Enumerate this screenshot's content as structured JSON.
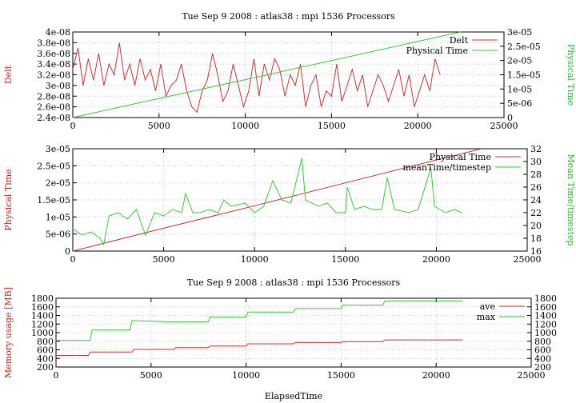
{
  "chart_data": [
    {
      "type": "line",
      "title": "Tue Sep 9 2008 : atlas38 : mpi 1536 Processors",
      "x_ticks": [
        "0",
        "5000",
        "10000",
        "15000",
        "20000",
        "25000"
      ],
      "xlim": [
        0,
        25000
      ],
      "y_left": {
        "label": "Delt",
        "color": "#cc3333",
        "lim": [
          2.4e-08,
          4e-08
        ],
        "ticks": [
          "2.4e-08",
          "2.6e-08",
          "2.8e-08",
          "3e-08",
          "3.2e-08",
          "3.4e-08",
          "3.6e-08",
          "3.8e-08",
          "4e-08"
        ]
      },
      "y_right": {
        "label": "Physical Time",
        "color": "#33cc33",
        "lim": [
          0,
          3e-05
        ],
        "ticks": [
          "0",
          "5e-06",
          "1e-05",
          "1.5e-05",
          "2e-05",
          "2.5e-05",
          "3e-05"
        ]
      },
      "legend_position": "top-right",
      "series": [
        {
          "name": "Delt",
          "color": "#cc3333",
          "axis": "left",
          "x": [
            0,
            300,
            600,
            900,
            1200,
            1500,
            1800,
            2100,
            2400,
            2700,
            3000,
            3300,
            3600,
            3900,
            4200,
            4500,
            4800,
            5100,
            5400,
            5700,
            6000,
            6300,
            6600,
            6900,
            7200,
            7500,
            7800,
            8100,
            8400,
            8700,
            9000,
            9300,
            9600,
            9900,
            10200,
            10500,
            10800,
            11100,
            11400,
            11700,
            12000,
            12300,
            12600,
            12900,
            13200,
            13500,
            13800,
            14100,
            14400,
            14700,
            15000,
            15300,
            15600,
            15900,
            16200,
            16500,
            16800,
            17100,
            17400,
            17700,
            18000,
            18300,
            18600,
            18900,
            19200,
            19500,
            19800,
            20100,
            20400,
            20700,
            21000,
            21300
          ],
          "y": [
            3.3e-08,
            3.7e-08,
            3e-08,
            3.5e-08,
            3.1e-08,
            3.6e-08,
            3e-08,
            3.4e-08,
            3.2e-08,
            3.8e-08,
            3.1e-08,
            3.4e-08,
            3e-08,
            3.5e-08,
            3.1e-08,
            3.3e-08,
            2.9e-08,
            3.4e-08,
            2.8e-08,
            3e-08,
            3.1e-08,
            3.4e-08,
            2.9e-08,
            2.6e-08,
            2.5e-08,
            2.9e-08,
            3.1e-08,
            3.6e-08,
            3.2e-08,
            2.7e-08,
            2.9e-08,
            3.4e-08,
            3e-08,
            2.6e-08,
            2.9e-08,
            3.5e-08,
            2.8e-08,
            3.4e-08,
            3.1e-08,
            3.5e-08,
            3.3e-08,
            2.8e-08,
            3.2e-08,
            3e-08,
            3.4e-08,
            2.6e-08,
            3e-08,
            3.2e-08,
            2.6e-08,
            2.9e-08,
            2.8e-08,
            3.4e-08,
            2.7e-08,
            3e-08,
            3.3e-08,
            2.9e-08,
            3.2e-08,
            2.6e-08,
            2.9e-08,
            3.2e-08,
            3e-08,
            2.7e-08,
            3e-08,
            3.3e-08,
            2.8e-08,
            3.2e-08,
            2.6e-08,
            2.9e-08,
            3.2e-08,
            2.9e-08,
            3.5e-08,
            3.2e-08
          ]
        },
        {
          "name": "Physical Time",
          "color": "#33cc33",
          "axis": "right",
          "x": [
            0,
            5000,
            10000,
            15000,
            20000,
            22500
          ],
          "y": [
            0,
            6.7e-06,
            1.33e-05,
            2e-05,
            2.67e-05,
            3e-05
          ]
        }
      ]
    },
    {
      "type": "line",
      "title": "",
      "x_ticks": [
        "0",
        "5000",
        "10000",
        "15000",
        "20000",
        "25000"
      ],
      "xlim": [
        0,
        25000
      ],
      "y_left": {
        "label": "Physical Time",
        "color": "#cc3333",
        "lim": [
          0,
          3e-05
        ],
        "ticks": [
          "0",
          "5e-06",
          "1e-05",
          "1.5e-05",
          "2e-05",
          "2.5e-05",
          "3e-05"
        ]
      },
      "y_right": {
        "label": "Mean Time/timestep",
        "color": "#33cc33",
        "lim": [
          16,
          32
        ],
        "ticks": [
          "16",
          "18",
          "20",
          "22",
          "24",
          "26",
          "28",
          "30",
          "32"
        ]
      },
      "legend_position": "top-right",
      "series": [
        {
          "name": "Physical Time",
          "color": "#cc3333",
          "axis": "left",
          "x": [
            0,
            5000,
            10000,
            15000,
            20000,
            22500
          ],
          "y": [
            0,
            6.7e-06,
            1.33e-05,
            2e-05,
            2.67e-05,
            3e-05
          ]
        },
        {
          "name": "meanTime/timestep",
          "color": "#33cc33",
          "axis": "right",
          "x": [
            0,
            500,
            1000,
            1500,
            1700,
            2000,
            2500,
            3000,
            3500,
            4000,
            4500,
            5000,
            5500,
            6000,
            6200,
            6600,
            7000,
            7500,
            8000,
            8300,
            8700,
            9500,
            10000,
            10500,
            11000,
            11500,
            12000,
            12600,
            12800,
            13500,
            14000,
            14500,
            15000,
            15100,
            15500,
            16000,
            16500,
            17000,
            17300,
            17700,
            18500,
            19000,
            19700,
            19900,
            20500,
            21000,
            21400
          ],
          "y": [
            19.5,
            18.5,
            19.0,
            18.0,
            17.0,
            21.5,
            22.0,
            21.0,
            22.5,
            18.5,
            22.0,
            21.5,
            22.5,
            22.0,
            25.0,
            22.0,
            22.0,
            22.5,
            22.0,
            24.0,
            23.0,
            23.5,
            22.0,
            23.0,
            27.0,
            24.0,
            23.5,
            30.5,
            24.0,
            23.0,
            23.5,
            22.0,
            22.0,
            26.0,
            22.5,
            23.0,
            22.5,
            22.5,
            27.5,
            22.5,
            22.0,
            22.5,
            29.0,
            23.0,
            22.0,
            22.5,
            22.0
          ]
        }
      ]
    },
    {
      "type": "line",
      "title": "Tue Sep 9 2008 : atlas38 : mpi 1536 Processors",
      "xlabel": "ElapsedTime",
      "x_ticks": [
        "0",
        "5000",
        "10000",
        "15000",
        "20000",
        "25000"
      ],
      "xlim": [
        0,
        25000
      ],
      "y_left": {
        "label": "Memory usage [MB]",
        "color": "#cc3333",
        "lim": [
          200,
          1800
        ],
        "ticks": [
          "200",
          "400",
          "600",
          "800",
          "1000",
          "1200",
          "1400",
          "1600",
          "1800"
        ]
      },
      "y_right": {
        "label": "",
        "lim": [
          200,
          1800
        ],
        "ticks": [
          "200",
          "400",
          "600",
          "800",
          "1000",
          "1200",
          "1400",
          "1600",
          "1800"
        ]
      },
      "legend_position": "top-right",
      "series": [
        {
          "name": "ave",
          "color": "#cc3333",
          "x": [
            0,
            1700,
            1800,
            4000,
            4100,
            6200,
            6300,
            8000,
            8100,
            10000,
            10100,
            12500,
            12600,
            15000,
            15100,
            17200,
            17300,
            21400
          ],
          "y": [
            470,
            470,
            550,
            550,
            610,
            610,
            650,
            650,
            690,
            690,
            740,
            740,
            770,
            770,
            790,
            790,
            830,
            830
          ]
        },
        {
          "name": "max",
          "color": "#33cc33",
          "x": [
            0,
            1800,
            1900,
            3900,
            4000,
            6200,
            8000,
            8100,
            10000,
            10100,
            12500,
            12600,
            15000,
            15100,
            17200,
            17300,
            21400
          ],
          "y": [
            820,
            820,
            1060,
            1060,
            1280,
            1250,
            1250,
            1360,
            1360,
            1480,
            1480,
            1560,
            1560,
            1640,
            1640,
            1740,
            1740
          ]
        }
      ]
    }
  ]
}
